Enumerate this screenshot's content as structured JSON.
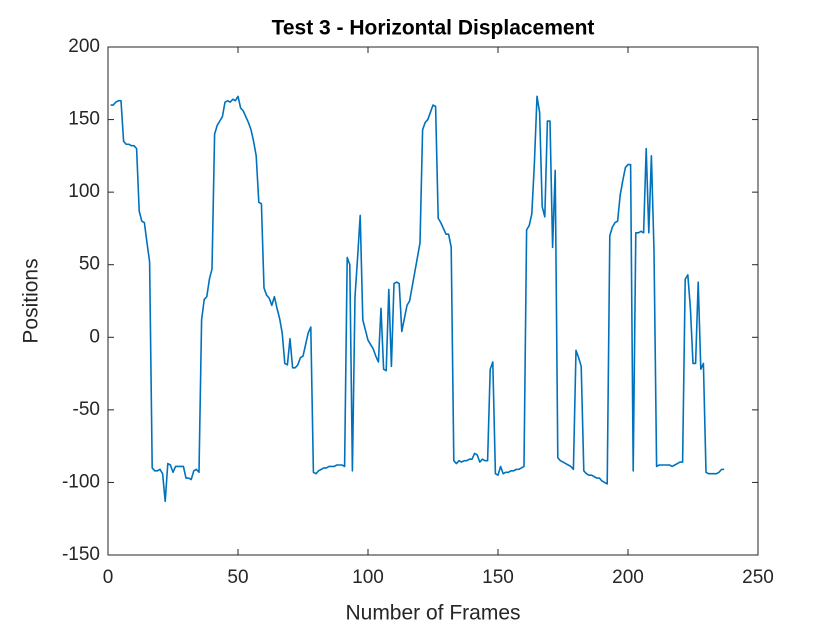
{
  "chart_data": {
    "type": "line",
    "title": "Test 3 - Horizontal Displacement",
    "x_label": "Number of Frames",
    "y_label": "Positions",
    "xlim": [
      0,
      250
    ],
    "xticks": [
      0,
      50,
      100,
      150,
      200,
      250
    ],
    "ylim": [
      -150,
      200
    ],
    "yticks": [
      -150,
      -100,
      -50,
      0,
      50,
      100,
      150,
      200
    ],
    "grid": false,
    "x": [
      1,
      2,
      3,
      4,
      5,
      6,
      7,
      8,
      9,
      10,
      11,
      12,
      13,
      14,
      15,
      16,
      17,
      18,
      19,
      20,
      21,
      22,
      23,
      24,
      25,
      26,
      27,
      28,
      29,
      30,
      31,
      32,
      33,
      34,
      35,
      36,
      37,
      38,
      39,
      40,
      41,
      42,
      43,
      44,
      45,
      46,
      47,
      48,
      49,
      50,
      51,
      52,
      53,
      54,
      55,
      56,
      57,
      58,
      59,
      60,
      61,
      62,
      63,
      64,
      65,
      66,
      67,
      68,
      69,
      70,
      71,
      72,
      73,
      74,
      75,
      76,
      77,
      78,
      79,
      80,
      81,
      82,
      83,
      84,
      85,
      86,
      87,
      88,
      89,
      90,
      91,
      92,
      93,
      94,
      95,
      96,
      97,
      98,
      99,
      100,
      101,
      102,
      103,
      104,
      105,
      106,
      107,
      108,
      109,
      110,
      111,
      112,
      113,
      114,
      115,
      116,
      117,
      118,
      119,
      120,
      121,
      122,
      123,
      124,
      125,
      126,
      127,
      128,
      129,
      130,
      131,
      132,
      133,
      134,
      135,
      136,
      137,
      138,
      139,
      140,
      141,
      142,
      143,
      144,
      145,
      146,
      147,
      148,
      149,
      150,
      151,
      152,
      153,
      154,
      155,
      156,
      157,
      158,
      159,
      160,
      161,
      162,
      163,
      164,
      165,
      166,
      167,
      168,
      169,
      170,
      171,
      172,
      173,
      174,
      175,
      176,
      177,
      178,
      179,
      180,
      181,
      182,
      183,
      184,
      185,
      186,
      187,
      188,
      189,
      190,
      191,
      192,
      193,
      194,
      195,
      196,
      197,
      198,
      199,
      200,
      201,
      202,
      203,
      204,
      205,
      206,
      207,
      208,
      209,
      210,
      211,
      212,
      213,
      214,
      215,
      216,
      217,
      218,
      219,
      220,
      221,
      222,
      223,
      224,
      225,
      226,
      227,
      228,
      229,
      230,
      231,
      232,
      233,
      234,
      235,
      236,
      237
    ],
    "series": [
      {
        "color": "#0072bd",
        "values": [
          160,
          160,
          162,
          163,
          163,
          135,
          133,
          133,
          132,
          132,
          130,
          87,
          80,
          79,
          65,
          52,
          -90,
          -92,
          -92,
          -91,
          -94,
          -113,
          -87,
          -88,
          -93,
          -89,
          -89,
          -89,
          -89,
          -97,
          -97,
          -98,
          -92,
          -91,
          -93,
          12,
          26,
          28,
          40,
          47,
          140,
          146,
          149,
          152,
          162,
          163,
          162,
          164,
          163,
          166,
          158,
          156,
          152,
          148,
          143,
          135,
          125,
          93,
          92,
          34,
          29,
          27,
          22,
          28,
          20,
          13,
          3,
          -18,
          -19,
          -1,
          -21,
          -21,
          -19,
          -14,
          -13,
          -5,
          3,
          7,
          -93,
          -94,
          -92,
          -91,
          -90,
          -90,
          -89,
          -89,
          -89,
          -88,
          -88,
          -88,
          -89,
          55,
          50,
          -92,
          28,
          55,
          84,
          12,
          5,
          -2,
          -5,
          -8,
          -13,
          -17,
          20,
          -22,
          -23,
          33,
          -20,
          37,
          38,
          37,
          4,
          13,
          22,
          25,
          35,
          45,
          55,
          65,
          143,
          148,
          150,
          155,
          160,
          159,
          82,
          79,
          75,
          71,
          71,
          62,
          -85,
          -87,
          -85,
          -86,
          -85,
          -85,
          -84,
          -84,
          -80,
          -81,
          -86,
          -84,
          -85,
          -85,
          -22,
          -17,
          -94,
          -95,
          -89,
          -94,
          -93,
          -93,
          -92,
          -92,
          -91,
          -91,
          -90,
          -89,
          74,
          77,
          85,
          120,
          166,
          155,
          90,
          83,
          149,
          149,
          62,
          115,
          -83,
          -85,
          -86,
          -87,
          -88,
          -89,
          -91,
          -9,
          -14,
          -20,
          -92,
          -94,
          -95,
          -95,
          -96,
          -97,
          -97,
          -99,
          -100,
          -101,
          70,
          76,
          79,
          80,
          98,
          108,
          117,
          119,
          119,
          -92,
          72,
          72,
          73,
          72,
          130,
          72,
          125,
          60,
          -89,
          -88,
          -88,
          -88,
          -88,
          -88,
          -89,
          -88,
          -87,
          -86,
          -86,
          40,
          43,
          20,
          -18,
          -18,
          38,
          -22,
          -18,
          -93,
          -94,
          -94,
          -94,
          -94,
          -93,
          -91,
          -91
        ]
      }
    ]
  }
}
